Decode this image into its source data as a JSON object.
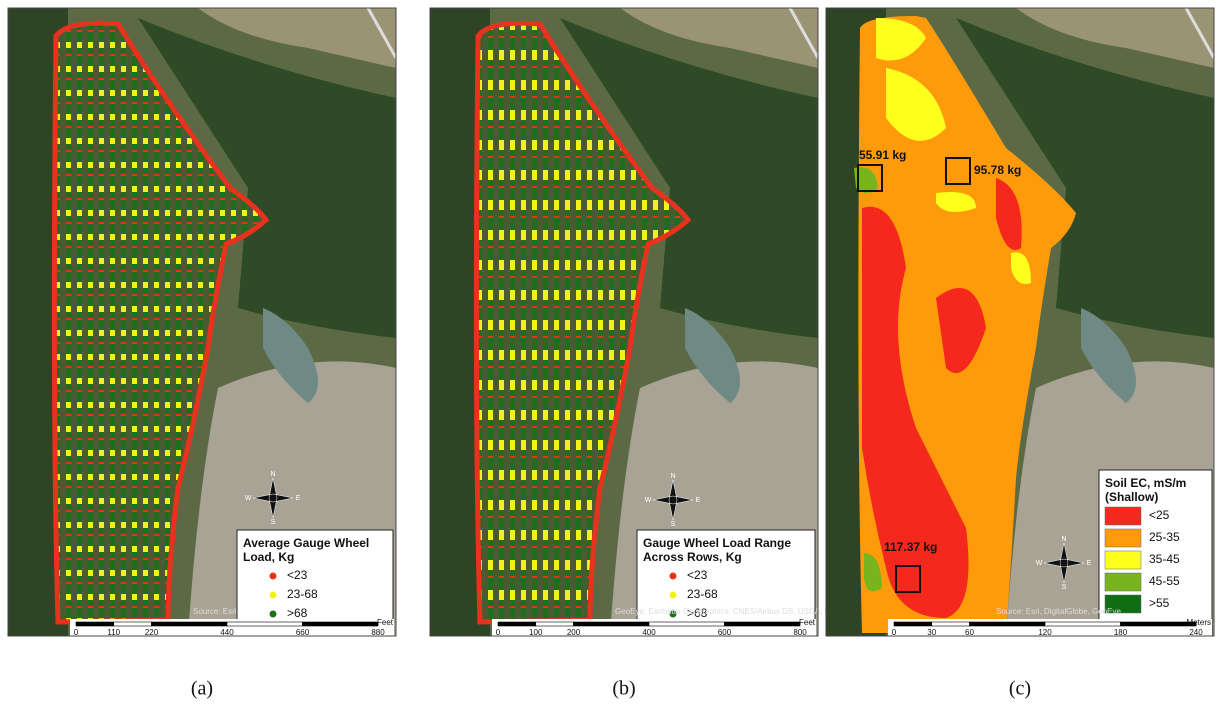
{
  "panels": [
    {
      "caption": "(a)",
      "legend": {
        "title": "Average Gauge Wheel Load, Kg",
        "items": [
          {
            "label": "<23",
            "color": "#e8321e"
          },
          {
            "label": "23-68",
            "color": "#f2f21a"
          },
          {
            "label": ">68",
            "color": "#1e6e1e"
          }
        ]
      },
      "scale": {
        "unit": "Feet",
        "ticks": [
          "0",
          "110",
          "220",
          "440",
          "660",
          "880"
        ]
      },
      "source": "Source: Esri"
    },
    {
      "caption": "(b)",
      "legend": {
        "title": "Gauge Wheel Load Range Across Rows, Kg",
        "items": [
          {
            "label": "<23",
            "color": "#e8321e"
          },
          {
            "label": "23-68",
            "color": "#f2f21a"
          },
          {
            "label": ">68",
            "color": "#1e6e1e"
          }
        ]
      },
      "scale": {
        "unit": "Feet",
        "ticks": [
          "0",
          "100",
          "200",
          "400",
          "600",
          "800"
        ]
      },
      "source": "GeoEye, Earthstar Geographics, CNES/Airbus DS, USDA, USGS"
    },
    {
      "caption": "(c)",
      "legend": {
        "title": "Soil EC, mS/m (Shallow)",
        "items": [
          {
            "label": "<25",
            "color": "#f5281e"
          },
          {
            "label": "25-35",
            "color": "#ff9b0a"
          },
          {
            "label": "35-45",
            "color": "#ffff1e"
          },
          {
            "label": "45-55",
            "color": "#78b41e"
          },
          {
            "label": ">55",
            "color": "#0f6e14"
          }
        ]
      },
      "scale": {
        "unit": "Meters",
        "ticks": [
          "0",
          "30",
          "60",
          "120",
          "180",
          "240"
        ]
      },
      "source": "Source: Esri, DigitalGlobe, GeoEye",
      "annotations": [
        "55.91 kg",
        "95.78 kg",
        "117.37 kg"
      ]
    }
  ],
  "compass": {
    "n": "N",
    "s": "S",
    "e": "E",
    "w": "W"
  }
}
